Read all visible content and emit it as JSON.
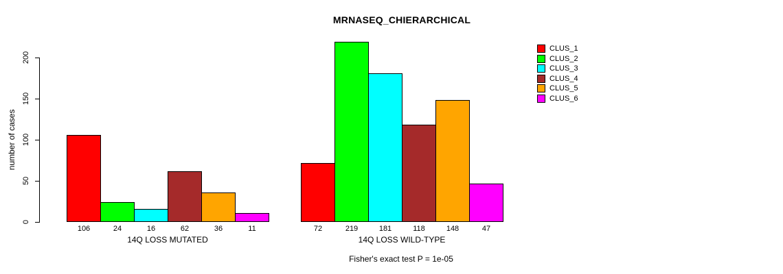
{
  "title": "MRNASEQ_CHIERARCHICAL",
  "y_axis": {
    "label": "number of cases",
    "ticks": [
      0,
      50,
      100,
      150,
      200
    ]
  },
  "footnote": "Fisher's exact test P = 1e-05",
  "chart_data": {
    "type": "bar",
    "title": "MRNASEQ_CHIERARCHICAL",
    "xlabel": "",
    "ylabel": "number of cases",
    "ylim": [
      0,
      200
    ],
    "y_ticks": [
      0,
      50,
      100,
      150,
      200
    ],
    "grid": false,
    "legend_position": "right",
    "bar_value_labels_shown": true,
    "annotation": "Fisher's exact test P = 1e-05",
    "categories": [
      "14Q LOSS MUTATED",
      "14Q LOSS WILD-TYPE"
    ],
    "series": [
      {
        "name": "CLUS_1",
        "color": "#FF0000",
        "values": [
          106,
          72
        ]
      },
      {
        "name": "CLUS_2",
        "color": "#00FF00",
        "values": [
          24,
          219
        ]
      },
      {
        "name": "CLUS_3",
        "color": "#00FFFF",
        "values": [
          16,
          181
        ]
      },
      {
        "name": "CLUS_4",
        "color": "#A52A2A",
        "values": [
          62,
          118
        ]
      },
      {
        "name": "CLUS_5",
        "color": "#FFA500",
        "values": [
          36,
          148
        ]
      },
      {
        "name": "CLUS_6",
        "color": "#FF00FF",
        "values": [
          11,
          47
        ]
      }
    ]
  }
}
